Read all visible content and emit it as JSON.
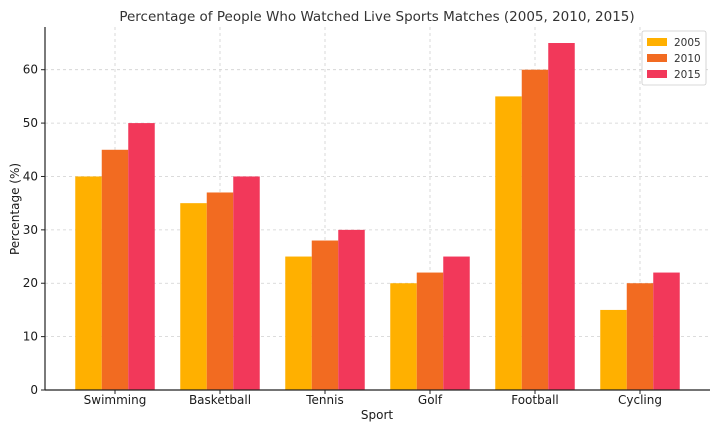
{
  "chart_data": {
    "type": "bar",
    "title": "Percentage of People Who Watched Live Sports Matches (2005, 2010, 2015)",
    "xlabel": "Sport",
    "ylabel": "Percentage (%)",
    "categories": [
      "Swimming",
      "Basketball",
      "Tennis",
      "Golf",
      "Football",
      "Cycling"
    ],
    "series": [
      {
        "name": "2005",
        "color": "#FFB000",
        "values": [
          40,
          35,
          25,
          20,
          55,
          15
        ]
      },
      {
        "name": "2010",
        "color": "#F26B21",
        "values": [
          45,
          37,
          28,
          22,
          60,
          20
        ]
      },
      {
        "name": "2015",
        "color": "#F2385A",
        "values": [
          50,
          40,
          30,
          25,
          65,
          22
        ]
      }
    ],
    "ylim": [
      0,
      68
    ],
    "yticks": [
      0,
      10,
      20,
      30,
      40,
      50,
      60
    ],
    "grid": true,
    "legend_position": "top-right"
  }
}
